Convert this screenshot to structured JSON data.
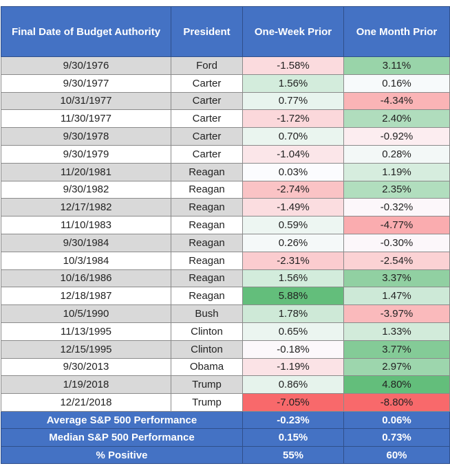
{
  "chart_data": {
    "type": "table",
    "columns": [
      "Final Date of Budget Authority",
      "President",
      "One-Week Prior",
      "One Month Prior"
    ],
    "rows": [
      {
        "date": "9/30/1976",
        "president": "Ford",
        "week": "-1.58%",
        "month": "3.11%"
      },
      {
        "date": "9/30/1977",
        "president": "Carter",
        "week": "1.56%",
        "month": "0.16%"
      },
      {
        "date": "10/31/1977",
        "president": "Carter",
        "week": "0.77%",
        "month": "-4.34%"
      },
      {
        "date": "11/30/1977",
        "president": "Carter",
        "week": "-1.72%",
        "month": "2.40%"
      },
      {
        "date": "9/30/1978",
        "president": "Carter",
        "week": "0.70%",
        "month": "-0.92%"
      },
      {
        "date": "9/30/1979",
        "president": "Carter",
        "week": "-1.04%",
        "month": "0.28%"
      },
      {
        "date": "11/20/1981",
        "president": "Reagan",
        "week": "0.03%",
        "month": "1.19%"
      },
      {
        "date": "9/30/1982",
        "president": "Reagan",
        "week": "-2.74%",
        "month": "2.35%"
      },
      {
        "date": "12/17/1982",
        "president": "Reagan",
        "week": "-1.49%",
        "month": "-0.32%"
      },
      {
        "date": "11/10/1983",
        "president": "Reagan",
        "week": "0.59%",
        "month": "-4.77%"
      },
      {
        "date": "9/30/1984",
        "president": "Reagan",
        "week": "0.26%",
        "month": "-0.30%"
      },
      {
        "date": "10/3/1984",
        "president": "Reagan",
        "week": "-2.31%",
        "month": "-2.54%"
      },
      {
        "date": "10/16/1986",
        "president": "Reagan",
        "week": "1.56%",
        "month": "3.37%"
      },
      {
        "date": "12/18/1987",
        "president": "Reagan",
        "week": "5.88%",
        "month": "1.47%"
      },
      {
        "date": "10/5/1990",
        "president": "Bush",
        "week": "1.78%",
        "month": "-3.97%"
      },
      {
        "date": "11/13/1995",
        "president": "Clinton",
        "week": "0.65%",
        "month": "1.33%"
      },
      {
        "date": "12/15/1995",
        "president": "Clinton",
        "week": "-0.18%",
        "month": "3.77%"
      },
      {
        "date": "9/30/2013",
        "president": "Obama",
        "week": "-1.19%",
        "month": "2.97%"
      },
      {
        "date": "1/19/2018",
        "president": "Trump",
        "week": "0.86%",
        "month": "4.80%"
      },
      {
        "date": "12/21/2018",
        "president": "Trump",
        "week": "-7.05%",
        "month": "-8.80%"
      }
    ],
    "summary": [
      {
        "label": "Average S&P 500 Performance",
        "week": "-0.23%",
        "month": "0.06%"
      },
      {
        "label": "Median S&P 500 Performance",
        "week": "0.15%",
        "month": "0.73%"
      },
      {
        "label": "% Positive",
        "week": "55%",
        "month": "60%"
      }
    ],
    "colors": {
      "header_bg": "#4472c4",
      "header_text": "#ffffff",
      "row_shade": "#d9d9d9",
      "positive_max": "#63be7b",
      "negative_max": "#f8696b",
      "neutral": "#fcfcff"
    }
  }
}
